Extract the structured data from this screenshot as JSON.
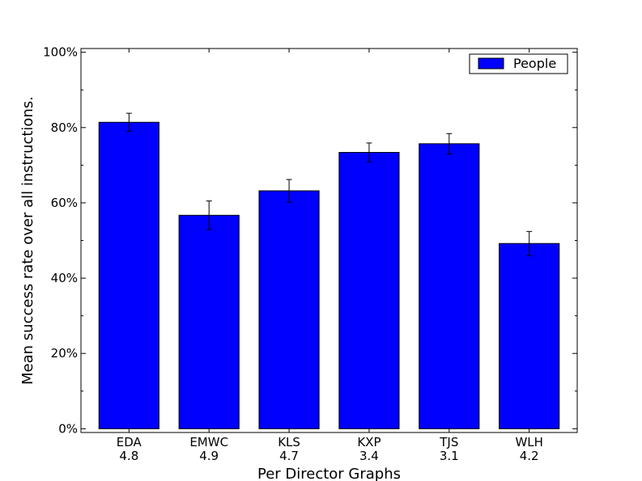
{
  "chart_data": {
    "type": "bar",
    "categories": [
      "EDA\n4.8",
      "EMWC\n4.9",
      "KLS\n4.7",
      "KXP\n3.4",
      "TJS\n3.1",
      "WLH\n4.2"
    ],
    "category_lines": [
      [
        "EDA",
        "4.8"
      ],
      [
        "EMWC",
        "4.9"
      ],
      [
        "KLS",
        "4.7"
      ],
      [
        "KXP",
        "3.4"
      ],
      [
        "TJS",
        "3.1"
      ],
      [
        "WLH",
        "4.2"
      ]
    ],
    "series": [
      {
        "name": "People",
        "color": "#0000ff",
        "values": [
          0.814,
          0.567,
          0.632,
          0.734,
          0.757,
          0.492
        ],
        "errors": [
          0.024,
          0.038,
          0.03,
          0.025,
          0.027,
          0.032
        ]
      }
    ],
    "title": "",
    "xlabel": "Per Director Graphs",
    "ylabel": "Mean success rate over all instructions.",
    "ylim": [
      -0.01,
      1.01
    ],
    "yticks": [
      0,
      0.2,
      0.4,
      0.6,
      0.8,
      1.0
    ],
    "ytick_labels": [
      "0%",
      "20%",
      "40%",
      "60%",
      "80%",
      "100%"
    ],
    "grid": false,
    "legend_position": "top-right"
  }
}
